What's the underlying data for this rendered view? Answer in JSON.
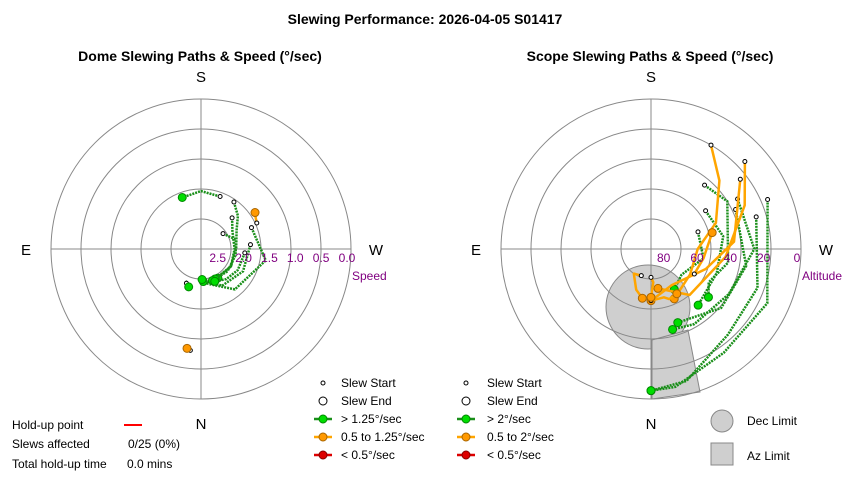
{
  "title": "Slewing Performance: 2026-04-05 S01417",
  "colors": {
    "fast": "#00dd00",
    "fast_edge": "#008800",
    "path_fast": "#1a8f1a",
    "medium": "#ff9900",
    "path_medium": "#ffa500",
    "slow": "#dd0000",
    "ring": "#888888",
    "speed_text": "#800080",
    "holdup_line": "#ff0000",
    "limit_fill": "#cfcfcf"
  },
  "holdup": {
    "point_label": "Hold-up point",
    "slews_label": "Slews affected",
    "slews_value": "0/25 (0%)",
    "total_label": "Total hold-up time",
    "total_value": "0.0 mins"
  },
  "chart_data": [
    {
      "type": "scatter",
      "title": "Dome Slewing Paths & Speed (°/sec)",
      "projection": "polar",
      "compass": {
        "top": "S",
        "bottom": "N",
        "left": "E",
        "right": "W"
      },
      "radial_axis_label": "Speed",
      "radial_ticks": [
        "2.5",
        "2.0",
        "1.5",
        "1.0",
        "0.5",
        "0.0"
      ],
      "radial_range": [
        2.9,
        0.0
      ],
      "legend": {
        "position": "bottom",
        "items": [
          {
            "label": "Slew Start",
            "marker": "start"
          },
          {
            "label": "Slew End",
            "marker": "end"
          },
          {
            "label": "> 1.25°/sec",
            "marker": "fast"
          },
          {
            "label": "0.5 to 1.25°/sec",
            "marker": "medium"
          },
          {
            "label": "< 0.5°/sec",
            "marker": "slow"
          }
        ]
      },
      "slews": [
        {
          "class": "medium",
          "points": [
            [
              186,
              0.93
            ],
            [
              189,
              0.91
            ],
            [
              188,
              0.96
            ]
          ]
        },
        {
          "class": "fast",
          "points": [
            [
              203,
              2.18
            ],
            [
              206,
              2.22
            ],
            [
              198,
              2.13
            ]
          ]
        },
        {
          "class": "medium",
          "points": [
            [
              65,
              1.71
            ],
            [
              60,
              1.68
            ],
            [
              56,
              1.64
            ]
          ]
        },
        {
          "class": "fast",
          "points": [
            [
              67,
              1.84
            ],
            [
              100,
              1.63
            ],
            [
              140,
              1.88
            ],
            [
              168,
              2.21
            ],
            [
              176,
              2.27
            ]
          ]
        },
        {
          "class": "fast",
          "points": [
            [
              85,
              1.94
            ],
            [
              118,
              1.98
            ],
            [
              150,
              2.08
            ],
            [
              170,
              2.27
            ],
            [
              178,
              2.31
            ]
          ]
        },
        {
          "class": "fast",
          "points": [
            [
              35,
              1.79
            ],
            [
              48,
              1.94
            ],
            [
              62,
              2.12
            ],
            [
              88,
              2.22
            ],
            [
              120,
              2.23
            ],
            [
              150,
              2.25
            ]
          ]
        },
        {
          "class": "fast",
          "points": [
            [
              45,
              2.05
            ],
            [
              60,
              2.2
            ],
            [
              90,
              2.25
            ],
            [
              120,
              2.23
            ],
            [
              155,
              2.26
            ]
          ]
        },
        {
          "class": "fast",
          "points": [
            [
              55,
              2.38
            ],
            [
              75,
              2.2
            ],
            [
              100,
              2.22
            ],
            [
              130,
              2.23
            ],
            [
              160,
              2.25
            ]
          ]
        },
        {
          "class": "fast",
          "points": [
            [
              20,
              1.82
            ],
            [
              0,
              1.78
            ],
            [
              340,
              1.84
            ]
          ]
        },
        {
          "class": "fast",
          "points": [
            [
              95,
              2.05
            ],
            [
              120,
              2.08
            ],
            [
              140,
              2.14
            ],
            [
              157,
              2.22
            ]
          ]
        }
      ]
    },
    {
      "type": "scatter",
      "title": "Scope Slewing Paths & Speed (°/sec)",
      "projection": "polar",
      "compass": {
        "top": "S",
        "bottom": "N",
        "left": "E",
        "right": "W"
      },
      "radial_axis_label": "Altitude",
      "radial_ticks": [
        "80",
        "60",
        "40",
        "20",
        "0"
      ],
      "radial_range": [
        90,
        0
      ],
      "legend": {
        "position": "bottom",
        "items": [
          {
            "label": "Slew Start",
            "marker": "start"
          },
          {
            "label": "Slew End",
            "marker": "end"
          },
          {
            "label": "> 2°/sec",
            "marker": "fast"
          },
          {
            "label": "0.5 to 2°/sec",
            "marker": "medium"
          },
          {
            "label": "< 0.5°/sec",
            "marker": "slow"
          }
        ],
        "limits": [
          {
            "label": "Dec Limit",
            "marker": "circle"
          },
          {
            "label": "Az Limit",
            "marker": "square"
          }
        ]
      },
      "slews": [
        {
          "class": "fast",
          "points": [
            [
              67,
              14
            ],
            [
              115,
              13
            ],
            [
              145,
              14
            ],
            [
              170,
              6
            ],
            [
              180,
              5
            ]
          ]
        },
        {
          "class": "fast",
          "points": [
            [
              73,
              24
            ],
            [
              110,
              22
            ],
            [
              138,
              21
            ],
            [
              165,
              8
            ],
            [
              180,
              5
            ]
          ]
        },
        {
          "class": "fast",
          "points": [
            [
              65,
              34
            ],
            [
              100,
              32
            ],
            [
              130,
              35
            ],
            [
              160,
              43
            ]
          ]
        },
        {
          "class": "fast",
          "points": [
            [
              55,
              50
            ],
            [
              80,
              46
            ],
            [
              110,
              48
            ],
            [
              140,
              46
            ]
          ]
        },
        {
          "class": "fast",
          "points": [
            [
              40,
              40
            ],
            [
              58,
              36
            ],
            [
              100,
              43
            ],
            [
              120,
              50
            ],
            [
              130,
              45
            ]
          ]
        },
        {
          "class": "fast",
          "points": [
            [
              60,
              30
            ],
            [
              90,
              28
            ],
            [
              120,
              36
            ],
            [
              150,
              38
            ],
            [
              165,
              40
            ]
          ]
        },
        {
          "class": "fast",
          "points": [
            [
              70,
              60
            ],
            [
              100,
              58
            ],
            [
              130,
              66
            ],
            [
              150,
              62
            ]
          ]
        },
        {
          "class": "medium",
          "points": [
            [
              47,
              13
            ],
            [
              65,
              28
            ],
            [
              96,
              45
            ],
            [
              140,
              54
            ],
            [
              170,
              66
            ]
          ]
        },
        {
          "class": "medium",
          "points": [
            [
              30,
              18
            ],
            [
              45,
              32
            ],
            [
              68,
              48
            ],
            [
              90,
              62
            ],
            [
              123,
              62
            ],
            [
              155,
              57
            ]
          ]
        },
        {
          "class": "medium",
          "points": [
            [
              52,
              22
            ],
            [
              85,
              40
            ],
            [
              110,
              55
            ],
            [
              150,
              65
            ],
            [
              180,
              59
            ]
          ]
        },
        {
          "class": "medium",
          "points": [
            [
              180,
              59
            ],
            [
              165,
              60
            ],
            [
              160,
              58
            ],
            [
              150,
              59
            ]
          ]
        },
        {
          "class": "medium",
          "points": [
            [
              200,
              73
            ],
            [
              215,
              72
            ],
            [
              200,
              64
            ],
            [
              190,
              60
            ]
          ]
        },
        {
          "class": "medium",
          "points": [
            [
              180,
              73
            ],
            [
              176,
              70
            ],
            [
              180,
              61
            ]
          ]
        },
        {
          "class": "medium",
          "points": [
            [
              120,
              60
            ],
            [
              100,
              58
            ],
            [
              75,
              52
            ]
          ]
        }
      ]
    }
  ]
}
